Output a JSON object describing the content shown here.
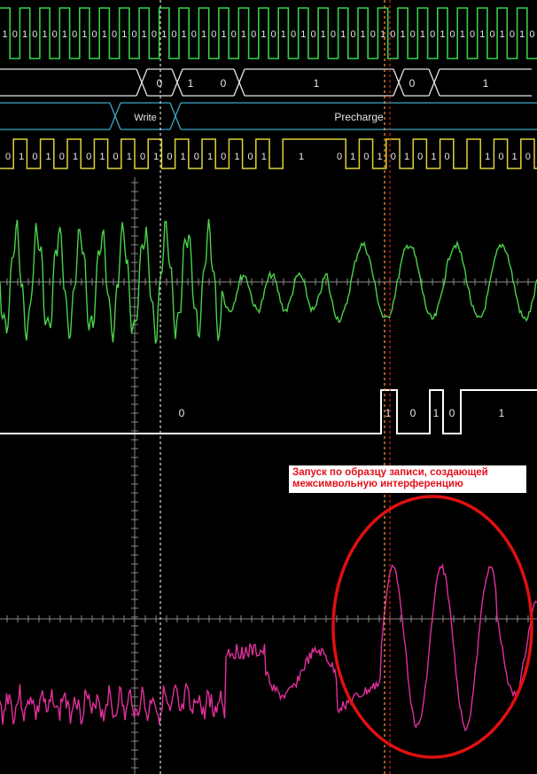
{
  "colors": {
    "background": "#000000",
    "clock": "#36d14a",
    "bus": "#e6e6e6",
    "command": "#3aa8c8",
    "dq": "#e0d23a",
    "analog_green": "#4ad24a",
    "digital_white": "#ffffff",
    "analog_pink": "#e0309a",
    "axis": "#8a8a8a",
    "cursor_white": "#d8d8d8",
    "cursor_orange": "#ff9a2a",
    "cursor_red": "#e02020",
    "highlight_circle": "#e01010",
    "annotation_text": "#e3101a"
  },
  "clock_bits": [
    "1",
    "0",
    "1",
    "0",
    "1",
    "0",
    "1",
    "0",
    "1",
    "0",
    "1",
    "0",
    "1",
    "0",
    "1",
    "0",
    "1",
    "0",
    "1",
    "0",
    "1",
    "0",
    "1",
    "0",
    "1",
    "0",
    "1",
    "0",
    "1",
    "0",
    "1",
    "0",
    "1",
    "0",
    "1",
    "0",
    "1",
    "0",
    "1",
    "0",
    "1",
    "0",
    "1",
    "0",
    "1",
    "0",
    "1",
    "0",
    "1",
    "0",
    "1",
    "0",
    "1",
    "0"
  ],
  "bus_labels": [
    "0",
    "1",
    "0",
    "1",
    "0",
    "1"
  ],
  "command_labels": [
    "Write",
    "Precharge"
  ],
  "dq_labels": [
    "0",
    "1",
    "0",
    "1",
    "0",
    "1",
    "0",
    "1",
    "0",
    "1",
    "0",
    "1",
    "0",
    "1",
    "0",
    "1",
    "0",
    "1",
    "0",
    "1",
    "0",
    "1",
    "0",
    "1",
    "0",
    "1",
    "0",
    "1",
    "0",
    "1",
    "0",
    "1",
    "0",
    "1",
    "0",
    "1",
    "0",
    "1",
    "0"
  ],
  "dq_one_label": "1",
  "digital_labels": [
    "0",
    "1",
    "0",
    "1",
    "0",
    "1"
  ],
  "annotation": {
    "line1": "Запуск по образцу записи, создающей",
    "line2": "межсимвольную интерференцию"
  },
  "icons": [
    "highlight-circle"
  ]
}
